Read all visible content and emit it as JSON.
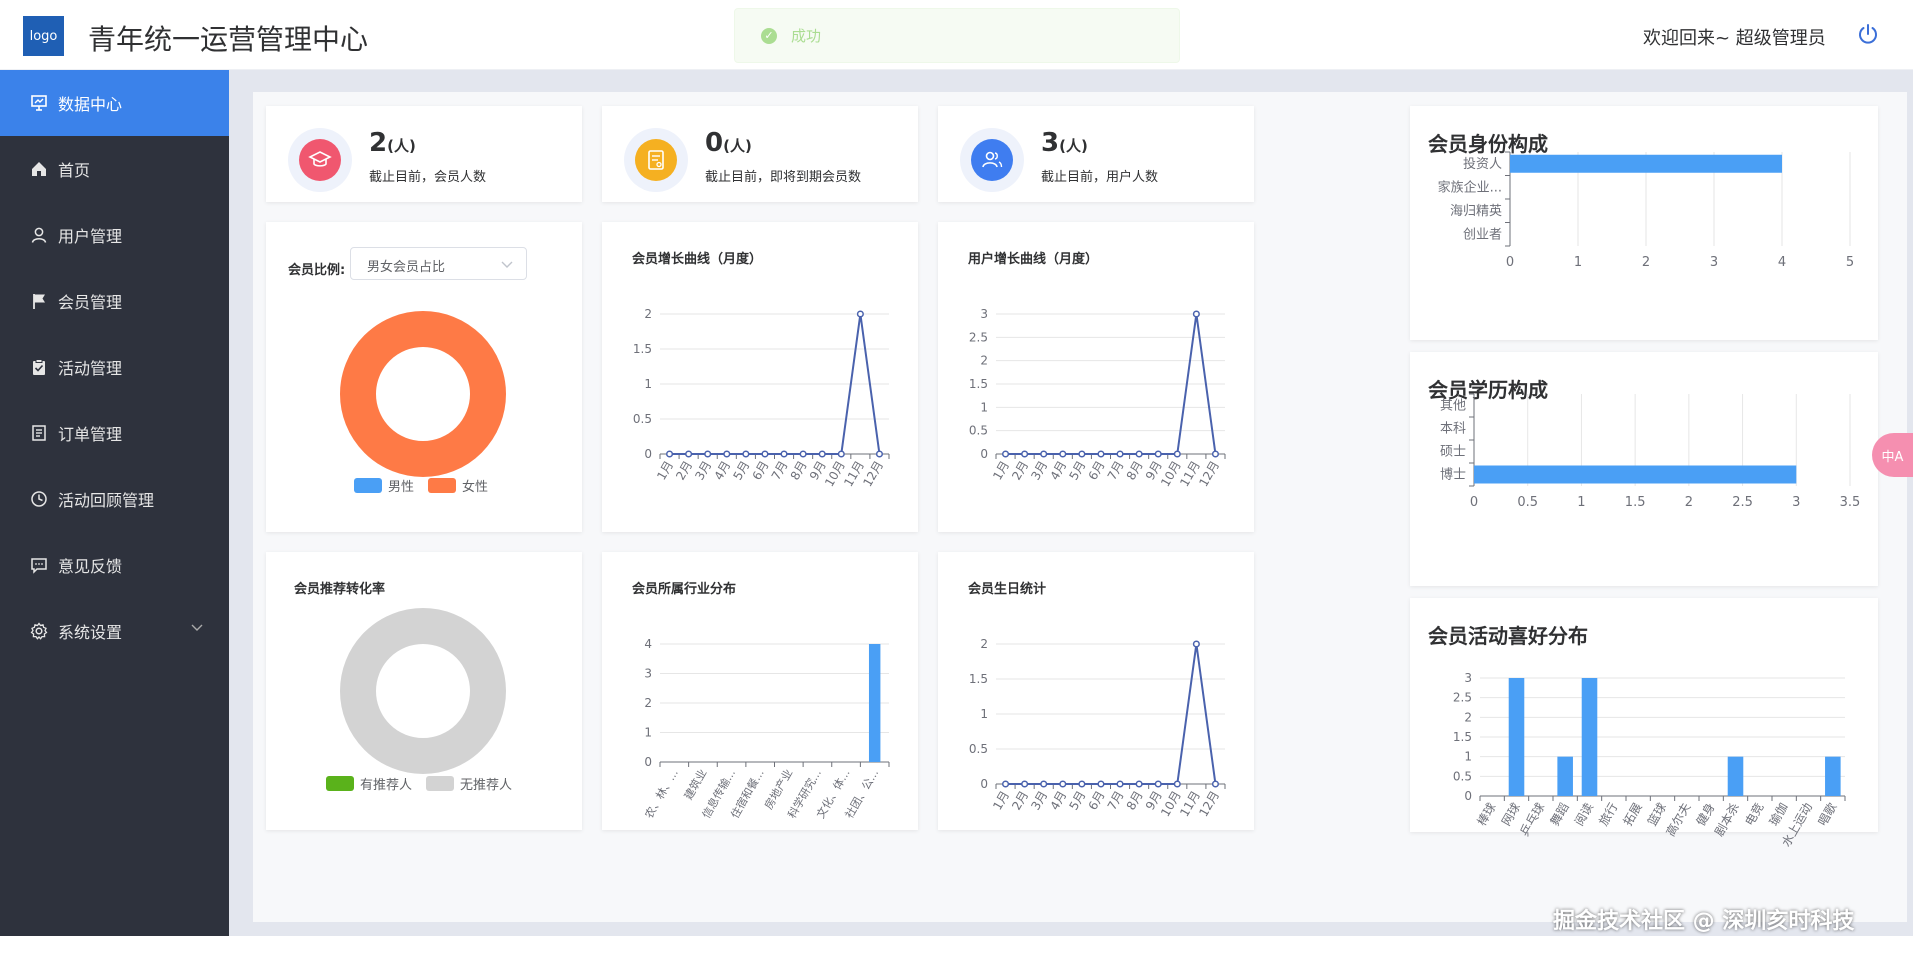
{
  "header": {
    "logo_text": "logo",
    "title": "青年统一运营管理中心",
    "toast": "成功",
    "welcome": "欢迎回来~ 超级管理员"
  },
  "sidebar": {
    "items": [
      {
        "label": "数据中心",
        "icon": "monitor-icon",
        "active": true
      },
      {
        "label": "首页",
        "icon": "home-icon"
      },
      {
        "label": "用户管理",
        "icon": "user-icon"
      },
      {
        "label": "会员管理",
        "icon": "flag-icon"
      },
      {
        "label": "活动管理",
        "icon": "clipboard-check-icon"
      },
      {
        "label": "订单管理",
        "icon": "document-icon"
      },
      {
        "label": "活动回顾管理",
        "icon": "clock-icon"
      },
      {
        "label": "意见反馈",
        "icon": "chat-icon"
      },
      {
        "label": "系统设置",
        "icon": "gear-icon",
        "expandable": true
      }
    ]
  },
  "stats": [
    {
      "value": "2",
      "unit": "(人)",
      "desc": "截止目前，会员人数",
      "color": "#f0576f"
    },
    {
      "value": "0",
      "unit": "(人)",
      "desc": "截止目前，即将到期会员数",
      "color": "#f5b021"
    },
    {
      "value": "3",
      "unit": "(人)",
      "desc": "截止目前，用户人数",
      "color": "#3f7df0"
    }
  ],
  "member_ratio": {
    "label": "会员比例:",
    "select_value": "男女会员占比",
    "legend": [
      "男性",
      "女性"
    ]
  },
  "referral": {
    "title": "会员推荐转化率",
    "legend": [
      "有推荐人",
      "无推荐人"
    ]
  },
  "colors": {
    "primary": "#3b82ea",
    "bar": "#4a9ff5",
    "line": "#4a62ad",
    "female": "#fe7a46",
    "male": "#4a9ff5",
    "referrer": "#5ab21b",
    "no_referrer": "#d3d3d3"
  },
  "chart_data": [
    {
      "id": "member_ratio",
      "type": "pie",
      "labels": [
        "男性",
        "女性"
      ],
      "values": [
        0,
        2
      ]
    },
    {
      "id": "referral",
      "type": "pie",
      "labels": [
        "有推荐人",
        "无推荐人"
      ],
      "values": [
        0,
        2
      ]
    },
    {
      "id": "member_growth",
      "type": "line",
      "title": "会员增长曲线（月度）",
      "categories": [
        "1月",
        "2月",
        "3月",
        "4月",
        "5月",
        "6月",
        "7月",
        "8月",
        "9月",
        "10月",
        "11月",
        "12月"
      ],
      "values": [
        0,
        0,
        0,
        0,
        0,
        0,
        0,
        0,
        0,
        0,
        2,
        0
      ],
      "yticks": [
        "0",
        "0.5",
        "1",
        "1.5",
        "2"
      ],
      "ylim": [
        0,
        2
      ]
    },
    {
      "id": "user_growth",
      "type": "line",
      "title": "用户增长曲线（月度）",
      "categories": [
        "1月",
        "2月",
        "3月",
        "4月",
        "5月",
        "6月",
        "7月",
        "8月",
        "9月",
        "10月",
        "11月",
        "12月"
      ],
      "values": [
        0,
        0,
        0,
        0,
        0,
        0,
        0,
        0,
        0,
        0,
        3,
        0
      ],
      "yticks": [
        "0",
        "0.5",
        "1",
        "1.5",
        "2",
        "2.5",
        "3"
      ],
      "ylim": [
        0,
        3
      ]
    },
    {
      "id": "industry",
      "type": "bar",
      "title": "会员所属行业分布",
      "categories": [
        "农、林、...",
        "建筑业",
        "信息传输...",
        "住宿和餐...",
        "房地产业",
        "科学研究...",
        "文化、体...",
        "社团、公..."
      ],
      "values": [
        0,
        0,
        0,
        0,
        0,
        0,
        0,
        4
      ],
      "yticks": [
        "0",
        "1",
        "2",
        "3",
        "4"
      ],
      "ylim": [
        0,
        4
      ]
    },
    {
      "id": "birthday",
      "type": "line",
      "title": "会员生日统计",
      "categories": [
        "1月",
        "2月",
        "3月",
        "4月",
        "5月",
        "6月",
        "7月",
        "8月",
        "9月",
        "10月",
        "11月",
        "12月"
      ],
      "values": [
        0,
        0,
        0,
        0,
        0,
        0,
        0,
        0,
        0,
        0,
        2,
        0
      ],
      "yticks": [
        "0",
        "0.5",
        "1",
        "1.5",
        "2"
      ],
      "ylim": [
        0,
        2
      ]
    },
    {
      "id": "identity",
      "type": "bar",
      "orientation": "horizontal",
      "title": "会员身份构成",
      "categories": [
        "投资人",
        "家族企业...",
        "海归精英",
        "创业者"
      ],
      "values": [
        4,
        0,
        0,
        0
      ],
      "xticks": [
        "0",
        "1",
        "2",
        "3",
        "4",
        "5"
      ],
      "xlim": [
        0,
        5
      ]
    },
    {
      "id": "education",
      "type": "bar",
      "orientation": "horizontal",
      "title": "会员学历构成",
      "categories": [
        "其他",
        "本科",
        "硕士",
        "博士"
      ],
      "values": [
        0,
        0,
        0,
        3
      ],
      "xticks": [
        "0",
        "0.5",
        "1",
        "1.5",
        "2",
        "2.5",
        "3",
        "3.5"
      ],
      "xlim": [
        0,
        3.5
      ]
    },
    {
      "id": "hobby",
      "type": "bar",
      "title": "会员活动喜好分布",
      "categories": [
        "棒球",
        "网球",
        "乒乓球",
        "舞蹈",
        "阅读",
        "旅行",
        "拓展",
        "篮球",
        "高尔夫",
        "健身",
        "剧本杀",
        "电竞",
        "瑜伽",
        "水上运动",
        "唱歌"
      ],
      "values": [
        0,
        3,
        0,
        1,
        3,
        0,
        0,
        0,
        0,
        0,
        1,
        0,
        0,
        0,
        1
      ],
      "yticks": [
        "0",
        "0.5",
        "1",
        "1.5",
        "2",
        "2.5",
        "3"
      ],
      "ylim": [
        0,
        3
      ]
    }
  ],
  "watermark": "掘金技术社区 @ 深圳亥时科技",
  "translate_fab": "中A"
}
